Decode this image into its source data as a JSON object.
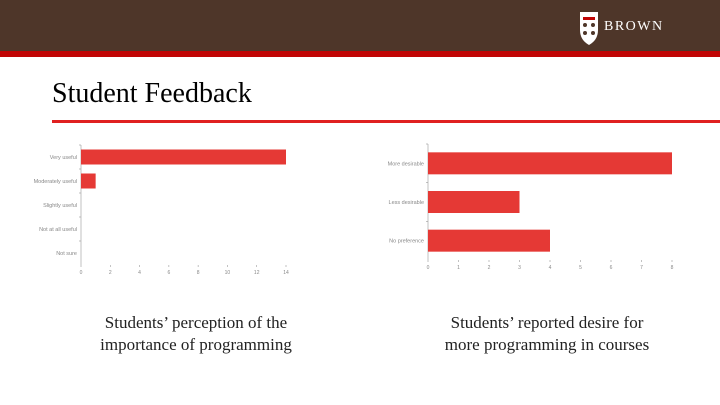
{
  "header": {
    "logo_text": "BROWN",
    "brand_color": "#4e3629",
    "accent_color": "#c00404"
  },
  "slide": {
    "title": "Student Feedback"
  },
  "captions": {
    "left_line1": "Students’ perception of the",
    "left_line2": "importance of programming",
    "right_line1": "Students’ reported desire for",
    "right_line2": "more programming in courses"
  },
  "chart_data": [
    {
      "type": "bar",
      "orientation": "horizontal",
      "categories": [
        "Very useful",
        "Moderately useful",
        "Slightly useful",
        "Not at all useful",
        "Not sure"
      ],
      "values": [
        14,
        1,
        0,
        0,
        0
      ],
      "xlim": [
        0,
        14
      ],
      "xticks": [
        0,
        2,
        4,
        6,
        8,
        10,
        12,
        14
      ],
      "bar_color": "#e53935",
      "grid": false
    },
    {
      "type": "bar",
      "orientation": "horizontal",
      "categories": [
        "More desirable",
        "Less desirable",
        "No preference"
      ],
      "values": [
        8,
        3,
        4
      ],
      "xlim": [
        0,
        8
      ],
      "xticks": [
        0,
        1,
        2,
        3,
        4,
        5,
        6,
        7,
        8
      ],
      "bar_color": "#e53935",
      "grid": false
    }
  ]
}
